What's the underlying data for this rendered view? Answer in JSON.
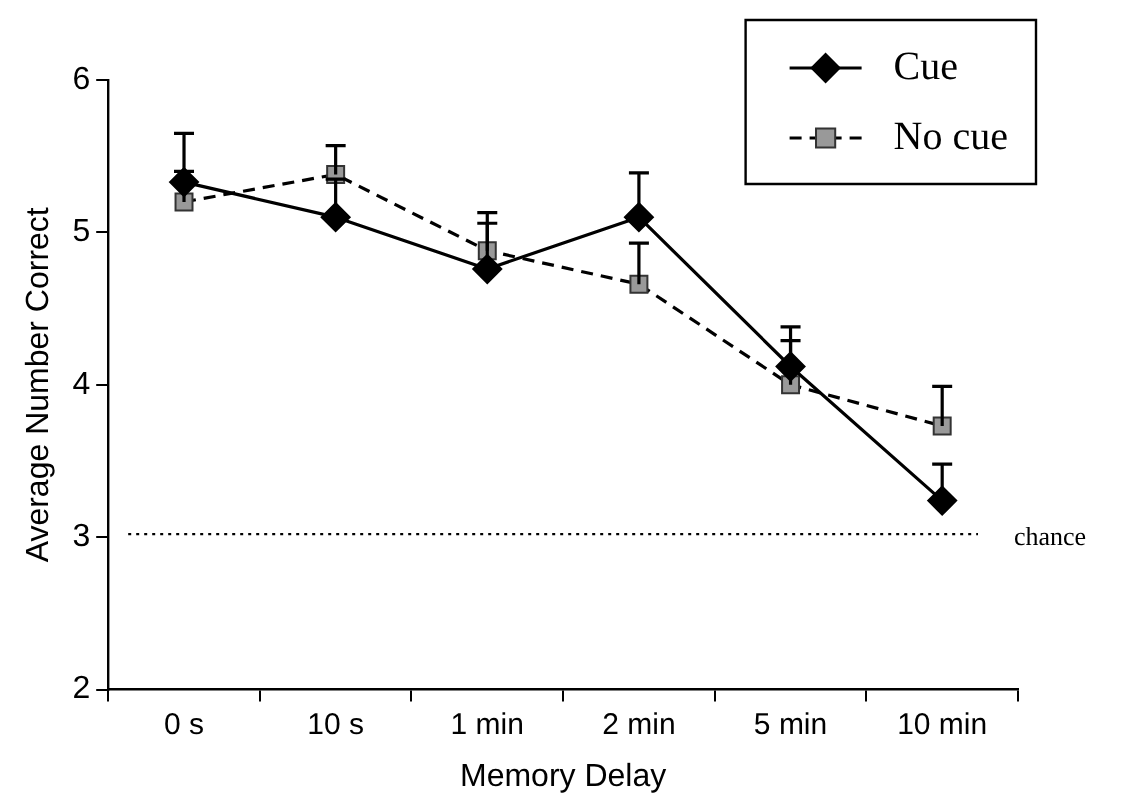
{
  "chart_data": {
    "type": "line",
    "xlabel": "Memory Delay",
    "ylabel": "Average Number Correct",
    "categories": [
      "0 s",
      "10 s",
      "1 min",
      "2 min",
      "5 min",
      "10 min"
    ],
    "series": [
      {
        "name": "Cue",
        "color": "#000000",
        "marker": "diamond",
        "line_style": "solid",
        "values": [
          5.33,
          5.1,
          4.76,
          5.1,
          4.12,
          3.24
        ],
        "errors": [
          [
            5.33,
            5.65
          ],
          [
            5.1,
            5.35
          ],
          [
            4.76,
            5.13
          ],
          [
            5.1,
            5.39
          ],
          [
            4.12,
            4.38
          ],
          [
            3.24,
            3.48
          ]
        ]
      },
      {
        "name": "No cue",
        "color": "#999999",
        "marker": "square",
        "line_style": "dashed",
        "values": [
          5.2,
          5.38,
          4.88,
          4.66,
          4.0,
          3.73
        ],
        "errors": [
          [
            5.2,
            5.4
          ],
          [
            5.38,
            5.57
          ],
          [
            4.88,
            5.06
          ],
          [
            4.66,
            4.93
          ],
          [
            4.0,
            4.29
          ],
          [
            3.73,
            3.99
          ]
        ]
      }
    ],
    "ylim": [
      2,
      6
    ],
    "yticks": [
      2,
      3,
      4,
      5,
      6
    ],
    "grid": false,
    "legend": "top right",
    "ref_lines": [
      {
        "axis": "y",
        "value": 3.02,
        "label": "chance",
        "line_style": "dotted",
        "color": "#000000"
      }
    ]
  }
}
